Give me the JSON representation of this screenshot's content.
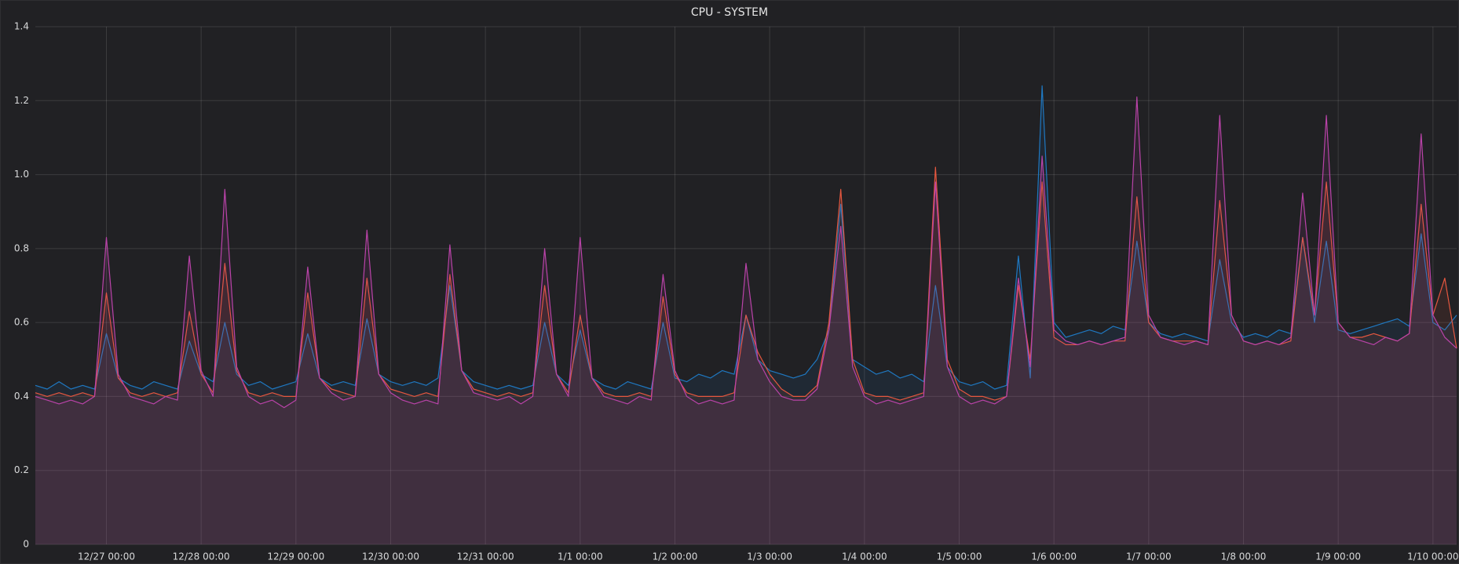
{
  "chart_data": {
    "type": "line",
    "title": "CPU - SYSTEM",
    "x": [
      "12/26 06:00",
      "12/26 09:00",
      "12/26 12:00",
      "12/26 15:00",
      "12/26 18:00",
      "12/26 21:00",
      "12/27 00:00",
      "12/27 03:00",
      "12/27 06:00",
      "12/27 09:00",
      "12/27 12:00",
      "12/27 15:00",
      "12/27 18:00",
      "12/27 21:00",
      "12/28 00:00",
      "12/28 03:00",
      "12/28 06:00",
      "12/28 09:00",
      "12/28 12:00",
      "12/28 15:00",
      "12/28 18:00",
      "12/28 21:00",
      "12/29 00:00",
      "12/29 03:00",
      "12/29 06:00",
      "12/29 09:00",
      "12/29 12:00",
      "12/29 15:00",
      "12/29 18:00",
      "12/29 21:00",
      "12/30 00:00",
      "12/30 03:00",
      "12/30 06:00",
      "12/30 09:00",
      "12/30 12:00",
      "12/30 15:00",
      "12/30 18:00",
      "12/30 21:00",
      "12/31 00:00",
      "12/31 03:00",
      "12/31 06:00",
      "12/31 09:00",
      "12/31 12:00",
      "12/31 15:00",
      "12/31 18:00",
      "12/31 21:00",
      "1/1 00:00",
      "1/1 03:00",
      "1/1 06:00",
      "1/1 09:00",
      "1/1 12:00",
      "1/1 15:00",
      "1/1 18:00",
      "1/1 21:00",
      "1/2 00:00",
      "1/2 03:00",
      "1/2 06:00",
      "1/2 09:00",
      "1/2 12:00",
      "1/2 15:00",
      "1/2 18:00",
      "1/2 21:00",
      "1/3 00:00",
      "1/3 03:00",
      "1/3 06:00",
      "1/3 09:00",
      "1/3 12:00",
      "1/3 15:00",
      "1/3 18:00",
      "1/3 21:00",
      "1/4 00:00",
      "1/4 03:00",
      "1/4 06:00",
      "1/4 09:00",
      "1/4 12:00",
      "1/4 15:00",
      "1/4 18:00",
      "1/4 21:00",
      "1/5 00:00",
      "1/5 03:00",
      "1/5 06:00",
      "1/5 09:00",
      "1/5 12:00",
      "1/5 15:00",
      "1/5 18:00",
      "1/5 21:00",
      "1/6 00:00",
      "1/6 03:00",
      "1/6 06:00",
      "1/6 09:00",
      "1/6 12:00",
      "1/6 15:00",
      "1/6 18:00",
      "1/6 21:00",
      "1/7 00:00",
      "1/7 03:00",
      "1/7 06:00",
      "1/7 09:00",
      "1/7 12:00",
      "1/7 15:00",
      "1/7 18:00",
      "1/7 21:00",
      "1/8 00:00",
      "1/8 03:00",
      "1/8 06:00",
      "1/8 09:00",
      "1/8 12:00",
      "1/8 15:00",
      "1/8 18:00",
      "1/8 21:00",
      "1/9 00:00",
      "1/9 03:00",
      "1/9 06:00",
      "1/9 09:00",
      "1/9 12:00",
      "1/9 15:00",
      "1/9 18:00",
      "1/9 21:00",
      "1/10 00:00",
      "1/10 03:00",
      "1/10 06:00"
    ],
    "series": [
      {
        "color": "#1f78c1",
        "values": [
          0.43,
          0.42,
          0.44,
          0.42,
          0.43,
          0.42,
          0.57,
          0.45,
          0.43,
          0.42,
          0.44,
          0.43,
          0.42,
          0.55,
          0.46,
          0.44,
          0.6,
          0.46,
          0.43,
          0.44,
          0.42,
          0.43,
          0.44,
          0.57,
          0.45,
          0.43,
          0.44,
          0.43,
          0.61,
          0.46,
          0.44,
          0.43,
          0.44,
          0.43,
          0.45,
          0.7,
          0.47,
          0.44,
          0.43,
          0.42,
          0.43,
          0.42,
          0.43,
          0.6,
          0.46,
          0.43,
          0.58,
          0.45,
          0.43,
          0.42,
          0.44,
          0.43,
          0.42,
          0.6,
          0.45,
          0.44,
          0.46,
          0.45,
          0.47,
          0.46,
          0.62,
          0.5,
          0.47,
          0.46,
          0.45,
          0.46,
          0.5,
          0.58,
          0.92,
          0.5,
          0.48,
          0.46,
          0.47,
          0.45,
          0.46,
          0.44,
          0.7,
          0.48,
          0.44,
          0.43,
          0.44,
          0.42,
          0.43,
          0.78,
          0.45,
          1.24,
          0.6,
          0.56,
          0.57,
          0.58,
          0.57,
          0.59,
          0.58,
          0.82,
          0.6,
          0.57,
          0.56,
          0.57,
          0.56,
          0.55,
          0.77,
          0.6,
          0.56,
          0.57,
          0.56,
          0.58,
          0.57,
          0.83,
          0.6,
          0.82,
          0.58,
          0.57,
          0.58,
          0.59,
          0.6,
          0.61,
          0.59,
          0.84,
          0.6,
          0.58,
          0.62
        ]
      },
      {
        "color": "#e5573f",
        "values": [
          0.41,
          0.4,
          0.41,
          0.4,
          0.41,
          0.4,
          0.68,
          0.45,
          0.41,
          0.4,
          0.41,
          0.4,
          0.41,
          0.63,
          0.46,
          0.41,
          0.76,
          0.47,
          0.41,
          0.4,
          0.41,
          0.4,
          0.4,
          0.68,
          0.45,
          0.42,
          0.41,
          0.4,
          0.72,
          0.46,
          0.42,
          0.41,
          0.4,
          0.41,
          0.4,
          0.73,
          0.47,
          0.42,
          0.41,
          0.4,
          0.41,
          0.4,
          0.41,
          0.7,
          0.46,
          0.41,
          0.62,
          0.45,
          0.41,
          0.4,
          0.4,
          0.41,
          0.4,
          0.67,
          0.46,
          0.41,
          0.4,
          0.4,
          0.4,
          0.41,
          0.62,
          0.52,
          0.46,
          0.42,
          0.4,
          0.4,
          0.43,
          0.6,
          0.96,
          0.5,
          0.41,
          0.4,
          0.4,
          0.39,
          0.4,
          0.41,
          1.02,
          0.5,
          0.42,
          0.4,
          0.4,
          0.39,
          0.4,
          0.7,
          0.5,
          0.98,
          0.56,
          0.54,
          0.54,
          0.55,
          0.54,
          0.55,
          0.55,
          0.94,
          0.6,
          0.56,
          0.55,
          0.55,
          0.55,
          0.54,
          0.93,
          0.62,
          0.55,
          0.54,
          0.55,
          0.54,
          0.55,
          0.83,
          0.62,
          0.98,
          0.6,
          0.56,
          0.56,
          0.57,
          0.56,
          0.55,
          0.57,
          0.92,
          0.62,
          0.72,
          0.53
        ]
      },
      {
        "color": "#ba43a9",
        "values": [
          0.4,
          0.39,
          0.38,
          0.39,
          0.38,
          0.4,
          0.83,
          0.46,
          0.4,
          0.39,
          0.38,
          0.4,
          0.39,
          0.78,
          0.47,
          0.4,
          0.96,
          0.48,
          0.4,
          0.38,
          0.39,
          0.37,
          0.39,
          0.75,
          0.45,
          0.41,
          0.39,
          0.4,
          0.85,
          0.46,
          0.41,
          0.39,
          0.38,
          0.39,
          0.38,
          0.81,
          0.47,
          0.41,
          0.4,
          0.39,
          0.4,
          0.38,
          0.4,
          0.8,
          0.46,
          0.4,
          0.83,
          0.45,
          0.4,
          0.39,
          0.38,
          0.4,
          0.39,
          0.73,
          0.47,
          0.4,
          0.38,
          0.39,
          0.38,
          0.39,
          0.76,
          0.5,
          0.44,
          0.4,
          0.39,
          0.39,
          0.42,
          0.58,
          0.86,
          0.48,
          0.4,
          0.38,
          0.39,
          0.38,
          0.39,
          0.4,
          0.98,
          0.48,
          0.4,
          0.38,
          0.39,
          0.38,
          0.4,
          0.72,
          0.48,
          1.05,
          0.58,
          0.55,
          0.54,
          0.55,
          0.54,
          0.55,
          0.56,
          1.21,
          0.62,
          0.56,
          0.55,
          0.54,
          0.55,
          0.54,
          1.16,
          0.62,
          0.55,
          0.54,
          0.55,
          0.54,
          0.56,
          0.95,
          0.62,
          1.16,
          0.6,
          0.56,
          0.55,
          0.54,
          0.56,
          0.55,
          0.57,
          1.11,
          0.62,
          0.56,
          0.53
        ]
      }
    ],
    "xlim": [
      "12/26 06:00",
      "1/10 06:00"
    ],
    "xticks": [
      "12/27 00:00",
      "12/28 00:00",
      "12/29 00:00",
      "12/30 00:00",
      "12/31 00:00",
      "1/1 00:00",
      "1/2 00:00",
      "1/3 00:00",
      "1/4 00:00",
      "1/5 00:00",
      "1/6 00:00",
      "1/7 00:00",
      "1/8 00:00",
      "1/9 00:00",
      "1/10 00:00"
    ],
    "ylim": [
      0,
      1.4
    ],
    "yticks": [
      0,
      0.2,
      0.4,
      0.6,
      0.8,
      {
        "value": 1,
        "label": "1.0"
      },
      1.2,
      1.4
    ],
    "grid": true,
    "fill": true
  }
}
